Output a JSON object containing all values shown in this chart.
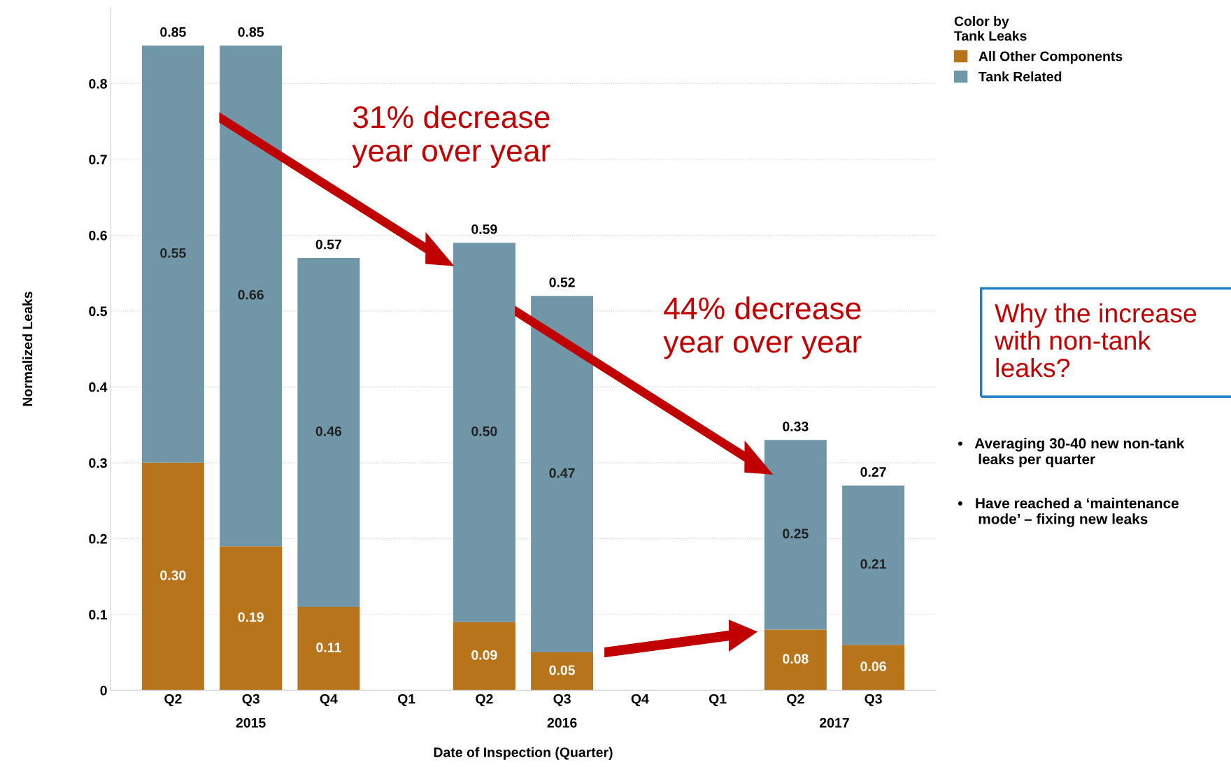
{
  "chart_data": {
    "type": "bar",
    "stacked": true,
    "xlabel": "Date of Inspection (Quarter)",
    "ylabel": "Normalized Leaks",
    "legend_title": "Color by\nTank Leaks",
    "categories": [
      "Q2",
      "Q3",
      "Q4",
      "Q1",
      "Q2",
      "Q3",
      "Q4",
      "Q1",
      "Q2",
      "Q3"
    ],
    "series": [
      {
        "name": "All Other Components",
        "color": "#b8741a",
        "values": [
          0.3,
          0.19,
          0.11,
          null,
          0.09,
          0.05,
          null,
          null,
          0.08,
          0.06
        ],
        "value_labels": [
          "0.30",
          "0.19",
          "0.11",
          null,
          "0.09",
          "0.05",
          null,
          null,
          "0.08",
          "0.06"
        ]
      },
      {
        "name": "Tank Related",
        "color": "#7096a8",
        "values": [
          0.55,
          0.66,
          0.46,
          null,
          0.5,
          0.47,
          null,
          null,
          0.25,
          0.21
        ],
        "value_labels": [
          "0.55",
          "0.66",
          "0.46",
          null,
          "0.50",
          "0.47",
          null,
          null,
          "0.25",
          "0.21"
        ]
      }
    ],
    "totals": [
      "0.85",
      "0.85",
      "0.57",
      null,
      "0.59",
      "0.52",
      null,
      null,
      "0.33",
      "0.27"
    ],
    "ylim": [
      0,
      0.9
    ],
    "yticks": [
      0,
      0.1,
      0.2,
      0.3,
      0.4,
      0.5,
      0.6,
      0.7,
      0.8
    ],
    "grid": "y",
    "legend": "top right",
    "annotations": [
      "2015",
      "2016",
      "2017",
      "31% decrease\nyear over year",
      "44% decrease\nyear over year",
      "Why the increase\nwith non-tank\nleaks?",
      "•   Averaging 30-40 new non-tank\n     leaks per quarter",
      "•   Have reached a ‘maintenance\n     mode’ – fixing new leaks"
    ]
  }
}
